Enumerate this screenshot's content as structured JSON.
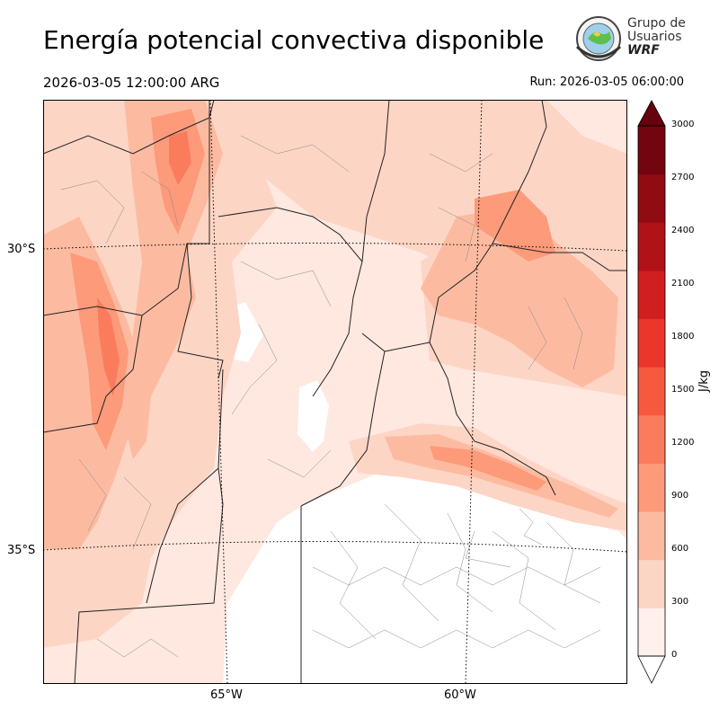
{
  "header": {
    "title": "Energía potencial convectiva disponible",
    "valid_time": "2026-03-05 12:00:00 ARG",
    "run_time": "Run: 2026-03-05 06:00:00"
  },
  "logo": {
    "line1": "Grupo de",
    "line2": "Usuarios",
    "line3": "WRF",
    "icon": "globe-seal-icon"
  },
  "map": {
    "latitude_labels": [
      "30°S",
      "35°S"
    ],
    "longitude_labels": [
      "65°W",
      "60°W"
    ],
    "graticule": "dotted"
  },
  "colorbar": {
    "label": "J/kg",
    "ticks": [
      "0",
      "300",
      "600",
      "900",
      "1200",
      "1500",
      "1800",
      "2100",
      "2400",
      "2700",
      "3000"
    ],
    "colors": [
      "#fff0eb",
      "#fdd5c5",
      "#fcbba1",
      "#fc9a7a",
      "#fb7c5c",
      "#f6593d",
      "#eb372b",
      "#d11e1f",
      "#b11217",
      "#910b13",
      "#72050e"
    ],
    "extend": "both",
    "over_color": "#67000d",
    "under_color": "#ffffff"
  }
}
